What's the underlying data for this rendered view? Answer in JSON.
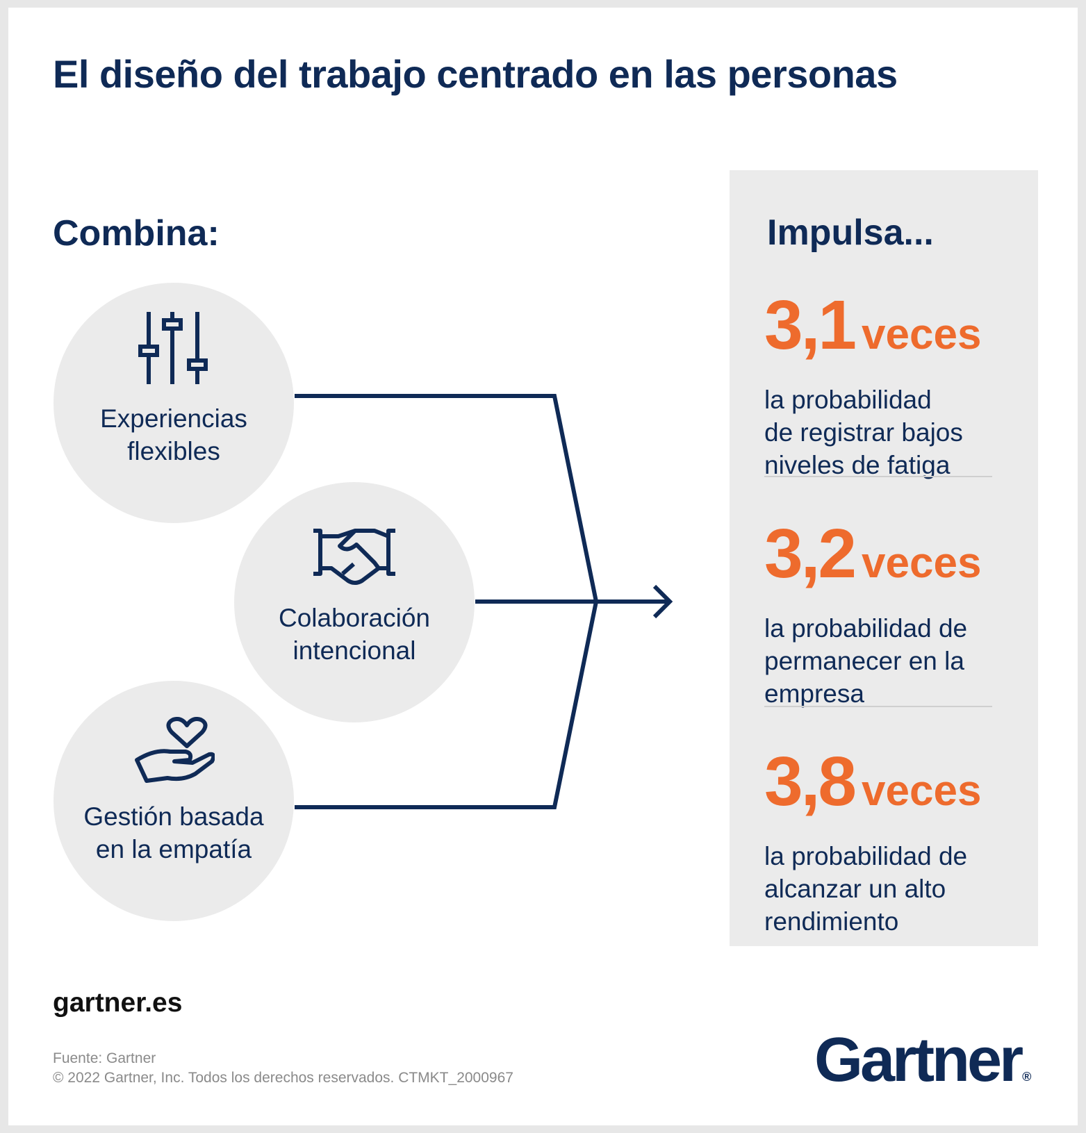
{
  "title": "El diseño del trabajo centrado en las personas",
  "left": {
    "heading": "Combina:",
    "items": [
      {
        "label": "Experiencias\nflexibles",
        "icon": "sliders-icon"
      },
      {
        "label": "Colaboración\nintencional",
        "icon": "handshake-icon"
      },
      {
        "label": "Gestión basada\nen la empatía",
        "icon": "hand-heart-icon"
      }
    ]
  },
  "right": {
    "heading": "Impulsa...",
    "stats": [
      {
        "value": "3,1",
        "unit": "veces",
        "text": "la probabilidad\nde registrar bajos\nniveles de fatiga"
      },
      {
        "value": "3,2",
        "unit": "veces",
        "text": "la probabilidad de\npermanecer en la\nempresa"
      },
      {
        "value": "3,8",
        "unit": "veces",
        "text": "la probabilidad de\nalcanzar un alto\nrendimiento"
      }
    ]
  },
  "footer": {
    "site": "gartner.es",
    "source": "Fuente: Gartner",
    "copyright": "© 2022 Gartner, Inc. Todos los derechos reservados. CTMKT_2000967",
    "logo": "Gartner",
    "logo_mark": "®"
  },
  "colors": {
    "navy": "#0f2a56",
    "orange": "#ee6b2d",
    "circle_gray": "#ebebeb",
    "panel_gray": "#ebebeb"
  }
}
